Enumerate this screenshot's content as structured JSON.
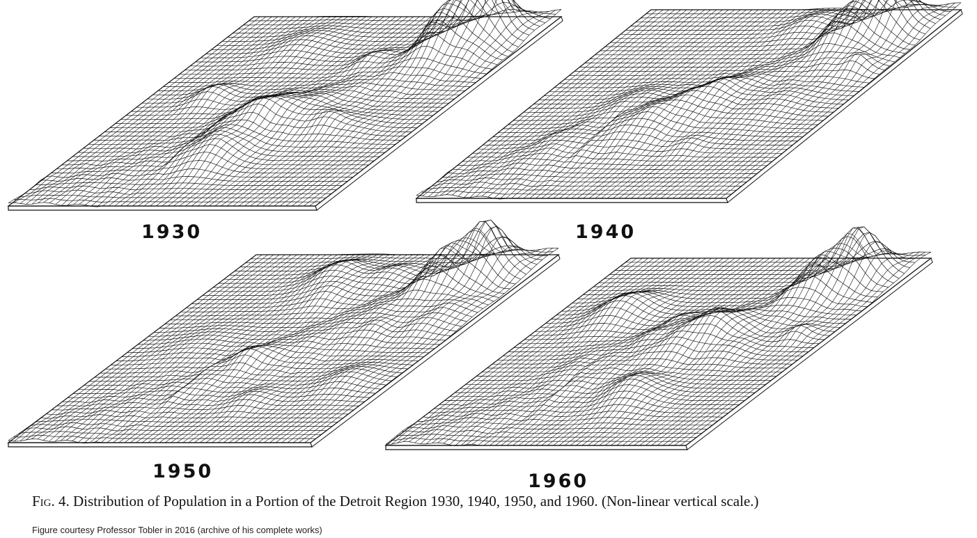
{
  "figure": {
    "caption_prefix": "Fig. 4.",
    "caption_text": "Distribution of Population in a Portion of the Detroit Region 1930, 1940, 1950, and 1960. (Non-linear vertical scale.)",
    "credit": "Figure courtesy Professor Tobler in 2016 (archive of his complete works)"
  },
  "panels": [
    {
      "year": "1930"
    },
    {
      "year": "1940"
    },
    {
      "year": "1950"
    },
    {
      "year": "1960"
    }
  ],
  "colors": {
    "ink": "#111111",
    "paper": "#ffffff"
  }
}
